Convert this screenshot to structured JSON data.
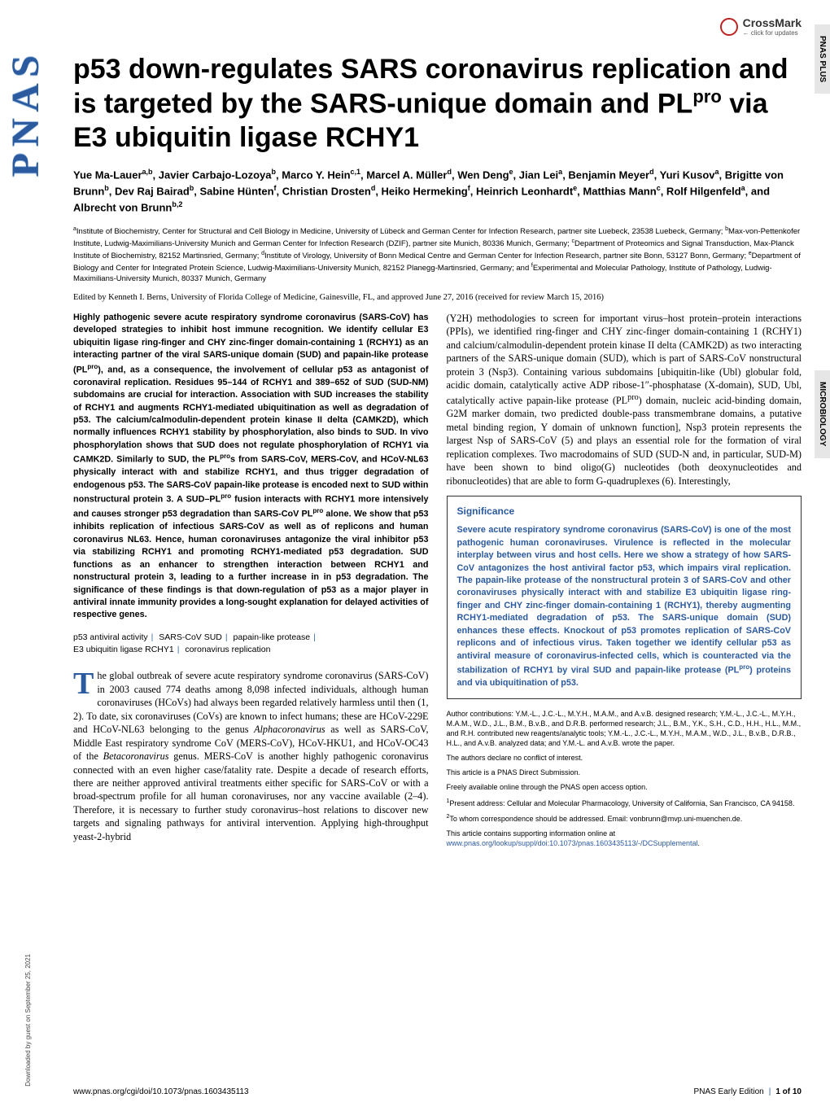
{
  "journal": {
    "logo_text": "PNAS",
    "right_tab_1": "PNAS PLUS",
    "right_tab_2": "MICROBIOLOGY",
    "crossmark_label": "CrossMark",
    "crossmark_sub": "← click for updates",
    "download_note": "Downloaded by guest on September 25, 2021"
  },
  "title_html": "p53 down-regulates SARS coronavirus replication and is targeted by the SARS-unique domain and PL<sup>pro</sup> via E3 ubiquitin ligase RCHY1",
  "authors_html": "Yue Ma-Lauer<sup>a,b</sup>, Javier Carbajo-Lozoya<sup>b</sup>, Marco Y. Hein<sup>c,1</sup>, Marcel A. Müller<sup>d</sup>, Wen Deng<sup>e</sup>, Jian Lei<sup>a</sup>, Benjamin Meyer<sup>d</sup>, Yuri Kusov<sup>a</sup>, Brigitte von Brunn<sup>b</sup>, Dev Raj Bairad<sup>b</sup>, Sabine Hünten<sup>f</sup>, Christian Drosten<sup>d</sup>, Heiko Hermeking<sup>f</sup>, Heinrich Leonhardt<sup>e</sup>, Matthias Mann<sup>c</sup>, Rolf Hilgenfeld<sup>a</sup>, and Albrecht von Brunn<sup>b,2</sup>",
  "affiliations_html": "<sup>a</sup>Institute of Biochemistry, Center for Structural and Cell Biology in Medicine, University of Lübeck and German Center for Infection Research, partner site Luebeck, 23538 Luebeck, Germany; <sup>b</sup>Max-von-Pettenkofer Institute, Ludwig-Maximilians-University Munich and German Center for Infection Research (DZIF), partner site Munich, 80336 Munich, Germany; <sup>c</sup>Department of Proteomics and Signal Transduction, Max-Planck Institute of Biochemistry, 82152 Martinsried, Germany; <sup>d</sup>Institute of Virology, University of Bonn Medical Centre and German Center for Infection Research, partner site Bonn, 53127 Bonn, Germany; <sup>e</sup>Department of Biology and Center for Integrated Protein Science, Ludwig-Maximilians-University Munich, 82152 Planegg-Martinsried, Germany; and <sup>f</sup>Experimental and Molecular Pathology, Institute of Pathology, Ludwig-Maximilians-University Munich, 80337 Munich, Germany",
  "edited": "Edited by Kenneth I. Berns, University of Florida College of Medicine, Gainesville, FL, and approved June 27, 2016 (received for review March 15, 2016)",
  "abstract_html": "Highly pathogenic severe acute respiratory syndrome coronavirus (SARS-CoV) has developed strategies to inhibit host immune recognition. We identify cellular E3 ubiquitin ligase ring-finger and CHY zinc-finger domain-containing 1 (RCHY1) as an interacting partner of the viral SARS-unique domain (SUD) and papain-like protease (PL<sup>pro</sup>), and, as a consequence, the involvement of cellular p53 as antagonist of coronaviral replication. Residues 95–144 of RCHY1 and 389–652 of SUD (SUD-NM) subdomains are crucial for interaction. Association with SUD increases the stability of RCHY1 and augments RCHY1-mediated ubiquitination as well as degradation of p53. The calcium/calmodulin-dependent protein kinase II delta (CAMK2D), which normally influences RCHY1 stability by phosphorylation, also binds to SUD. In vivo phosphorylation shows that SUD does not regulate phosphorylation of RCHY1 via CAMK2D. Similarly to SUD, the PL<sup>pro</sup>s from SARS-CoV, MERS-CoV, and HCoV-NL63 physically interact with and stabilize RCHY1, and thus trigger degradation of endogenous p53. The SARS-CoV papain-like protease is encoded next to SUD within nonstructural protein 3. A SUD–PL<sup>pro</sup> fusion interacts with RCHY1 more intensively and causes stronger p53 degradation than SARS-CoV PL<sup>pro</sup> alone. We show that p53 inhibits replication of infectious SARS-CoV as well as of replicons and human coronavirus NL63. Hence, human coronaviruses antagonize the viral inhibitor p53 via stabilizing RCHY1 and promoting RCHY1-mediated p53 degradation. SUD functions as an enhancer to strengthen interaction between RCHY1 and nonstructural protein 3, leading to a further increase in in p53 degradation. The significance of these findings is that down-regulation of p53 as a major player in antiviral innate immunity provides a long-sought explanation for delayed activities of respective genes.",
  "keywords": [
    "p53 antiviral activity",
    "SARS-CoV SUD",
    "papain-like protease",
    "E3 ubiquitin ligase RCHY1",
    "coronavirus replication"
  ],
  "body1_first_letter": "T",
  "body1_html": "he global outbreak of severe acute respiratory syndrome coronavirus (SARS-CoV) in 2003 caused 774 deaths among 8,098 infected individuals, although human coronaviruses (HCoVs) had always been regarded relatively harmless until then (1, 2). To date, six coronaviruses (CoVs) are known to infect humans; these are HCoV-229E and HCoV-NL63 belonging to the genus <i>Alphacoronavirus</i> as well as SARS-CoV, Middle East respiratory syndrome CoV (MERS-CoV), HCoV-HKU1, and HCoV-OC43 of the <i>Betacoronavirus</i> genus. MERS-CoV is another highly pathogenic coronavirus connected with an even higher case/fatality rate. Despite a decade of research efforts, there are neither approved antiviral treatments either specific for SARS-CoV or with a broad-spectrum profile for all human coronaviruses, nor any vaccine available (2–4). Therefore, it is necessary to further study coronavirus–host relations to discover new targets and signaling pathways for antiviral intervention. Applying high-throughput yeast-2-hybrid",
  "body2_html": "(Y2H) methodologies to screen for important virus–host protein–protein interactions (PPIs), we identified ring-finger and CHY zinc-finger domain-containing 1 (RCHY1) and calcium/calmodulin-dependent protein kinase II delta (CAMK2D) as two interacting partners of the SARS-unique domain (SUD), which is part of SARS-CoV nonstructural protein 3 (Nsp3). Containing various subdomains [ubiquitin-like (Ubl) globular fold, acidic domain, catalytically active ADP ribose-1″-phosphatase (X-domain), SUD, Ubl, catalytically active papain-like protease (PL<sup>pro</sup>) domain, nucleic acid-binding domain, G2M marker domain, two predicted double-pass transmembrane domains, a putative metal binding region, Y domain of unknown function], Nsp3 protein represents the largest Nsp of SARS-CoV (5) and plays an essential role for the formation of viral replication complexes. Two macrodomains of SUD (SUD-N and, in particular, SUD-M) have been shown to bind oligo(G) nucleotides (both deoxynucleotides and ribonucleotides) that are able to form G-quadruplexes (6). Interestingly,",
  "significance": {
    "title": "Significance",
    "body_html": "Severe acute respiratory syndrome coronavirus (SARS-CoV) is one of the most pathogenic human coronaviruses. Virulence is reflected in the molecular interplay between virus and host cells. Here we show a strategy of how SARS-CoV antagonizes the host antiviral factor p53, which impairs viral replication. The papain-like protease of the nonstructural protein 3 of SARS-CoV and other coronaviruses physically interact with and stabilize E3 ubiquitin ligase ring-finger and CHY zinc-finger domain-containing 1 (RCHY1), thereby augmenting RCHY1-mediated degradation of p53. The SARS-unique domain (SUD) enhances these effects. Knockout of p53 promotes replication of SARS-CoV replicons and of infectious virus. Taken together we identify cellular p53 as antiviral measure of coronavirus-infected cells, which is counteracted via the stabilization of RCHY1 by viral SUD and papain-like protease (PL<sup>pro</sup>) proteins and via ubiquitination of p53."
  },
  "footnotes": {
    "contrib": "Author contributions: Y.M.-L., J.C.-L., M.Y.H., M.A.M., and A.v.B. designed research; Y.M.-L., J.C.-L., M.Y.H., M.A.M., W.D., J.L., B.M., B.v.B., and D.R.B. performed research; J.L., B.M., Y.K., S.H., C.D., H.H., H.L., M.M., and R.H. contributed new reagents/analytic tools; Y.M.-L., J.C.-L., M.Y.H., M.A.M., W.D., J.L., B.v.B., D.R.B., H.L., and A.v.B. analyzed data; and Y.M.-L. and A.v.B. wrote the paper.",
    "conflict": "The authors declare no conflict of interest.",
    "direct": "This article is a PNAS Direct Submission.",
    "open": "Freely available online through the PNAS open access option.",
    "addr1": "<sup>1</sup>Present address: Cellular and Molecular Pharmacology, University of California, San Francisco, CA 94158.",
    "addr2": "<sup>2</sup>To whom correspondence should be addressed. Email: vonbrunn@mvp.uni-muenchen.de.",
    "si_pre": "This article contains supporting information online at ",
    "si_link": "www.pnas.org/lookup/suppl/doi:10.1073/pnas.1603435113/-/DCSupplemental",
    "si_post": "."
  },
  "footer": {
    "doi": "www.pnas.org/cgi/doi/10.1073/pnas.1603435113",
    "right_1": "PNAS Early Edition",
    "right_2": "1 of 10"
  },
  "colors": {
    "brand_blue": "#2b5a9e",
    "tab_bg": "#e6e6e6",
    "text": "#000000"
  }
}
